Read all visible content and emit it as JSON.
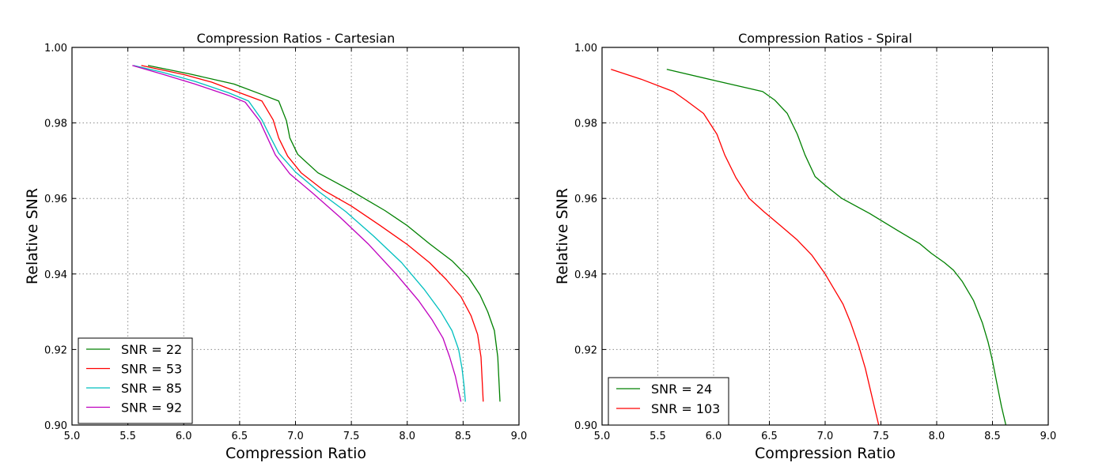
{
  "chart_data": [
    {
      "type": "line",
      "title": "Compression Ratios - Cartesian",
      "xlabel": "Compression Ratio",
      "ylabel": "Relative SNR",
      "xlim": [
        5.0,
        9.0
      ],
      "ylim": [
        0.9,
        1.0
      ],
      "xticks": [
        "5.0",
        "5.5",
        "6.0",
        "6.5",
        "7.0",
        "7.5",
        "8.0",
        "8.5",
        "9.0"
      ],
      "yticks": [
        "0.90",
        "0.92",
        "0.94",
        "0.96",
        "0.98",
        "1.00"
      ],
      "grid": true,
      "legend_position": "lower-left",
      "series": [
        {
          "name": "SNR = 22",
          "color": "#008000",
          "x": [
            5.68,
            6.05,
            6.45,
            6.7,
            6.85,
            6.92,
            6.95,
            7.02,
            7.2,
            7.5,
            7.8,
            8.0,
            8.2,
            8.4,
            8.55,
            8.65,
            8.72,
            8.78,
            8.81,
            8.83
          ],
          "y": [
            0.9952,
            0.993,
            0.9903,
            0.9875,
            0.9858,
            0.9805,
            0.976,
            0.9717,
            0.9668,
            0.962,
            0.9568,
            0.9528,
            0.948,
            0.9435,
            0.939,
            0.9345,
            0.93,
            0.925,
            0.918,
            0.9062
          ]
        },
        {
          "name": "SNR = 53",
          "color": "#ff0000",
          "x": [
            5.62,
            6.0,
            6.25,
            6.5,
            6.7,
            6.8,
            6.85,
            6.93,
            7.05,
            7.25,
            7.5,
            7.75,
            8.0,
            8.2,
            8.35,
            8.48,
            8.57,
            8.63,
            8.66,
            8.68
          ],
          "y": [
            0.9952,
            0.9928,
            0.9908,
            0.988,
            0.9858,
            0.9808,
            0.976,
            0.9712,
            0.9668,
            0.9622,
            0.958,
            0.953,
            0.9478,
            0.943,
            0.9385,
            0.934,
            0.929,
            0.924,
            0.918,
            0.9062
          ]
        },
        {
          "name": "SNR = 85",
          "color": "#00bfbf",
          "x": [
            5.55,
            5.8,
            6.1,
            6.4,
            6.58,
            6.7,
            6.78,
            6.85,
            7.0,
            7.2,
            7.45,
            7.7,
            7.95,
            8.15,
            8.3,
            8.4,
            8.46,
            8.49,
            8.51,
            8.52
          ],
          "y": [
            0.9952,
            0.9935,
            0.991,
            0.988,
            0.9858,
            0.9808,
            0.976,
            0.972,
            0.967,
            0.962,
            0.9565,
            0.95,
            0.943,
            0.936,
            0.93,
            0.925,
            0.92,
            0.915,
            0.91,
            0.9062
          ]
        },
        {
          "name": "SNR = 92",
          "color": "#bf00bf",
          "x": [
            5.54,
            5.8,
            6.1,
            6.4,
            6.55,
            6.68,
            6.75,
            6.82,
            6.95,
            7.15,
            7.4,
            7.65,
            7.9,
            8.1,
            8.22,
            8.32,
            8.38,
            8.43,
            8.46,
            8.48
          ],
          "y": [
            0.9952,
            0.993,
            0.9903,
            0.9873,
            0.9855,
            0.9805,
            0.976,
            0.9715,
            0.9665,
            0.9615,
            0.955,
            0.948,
            0.94,
            0.933,
            0.928,
            0.923,
            0.918,
            0.913,
            0.909,
            0.9062
          ]
        }
      ],
      "legend": [
        "SNR = 22",
        "SNR = 53",
        "SNR = 85",
        "SNR = 92"
      ]
    },
    {
      "type": "line",
      "title": "Compression Ratios - Spiral",
      "xlabel": "Compression Ratio",
      "ylabel": "Relative SNR",
      "xlim": [
        5.0,
        9.0
      ],
      "ylim": [
        0.9,
        1.0
      ],
      "xticks": [
        "5.0",
        "5.5",
        "6.0",
        "6.5",
        "7.0",
        "7.5",
        "8.0",
        "8.5",
        "9.0"
      ],
      "yticks": [
        "0.90",
        "0.92",
        "0.94",
        "0.96",
        "0.98",
        "1.00"
      ],
      "grid": true,
      "legend_position": "lower-left",
      "series": [
        {
          "name": "SNR = 24",
          "color": "#008000",
          "x": [
            5.58,
            6.0,
            6.44,
            6.55,
            6.66,
            6.75,
            6.82,
            6.91,
            7.0,
            7.15,
            7.4,
            7.65,
            7.85,
            7.95,
            8.07,
            8.15,
            8.23,
            8.33,
            8.41,
            8.46,
            8.5,
            8.54,
            8.58,
            8.62
          ],
          "y": [
            0.9942,
            0.9913,
            0.9883,
            0.986,
            0.9825,
            0.977,
            0.9715,
            0.9658,
            0.9635,
            0.96,
            0.956,
            0.9515,
            0.948,
            0.9455,
            0.943,
            0.941,
            0.938,
            0.933,
            0.927,
            0.922,
            0.917,
            0.911,
            0.905,
            0.9
          ]
        },
        {
          "name": "SNR = 103",
          "color": "#ff0000",
          "x": [
            5.08,
            5.35,
            5.64,
            5.75,
            5.91,
            6.03,
            6.1,
            6.2,
            6.32,
            6.45,
            6.6,
            6.75,
            6.88,
            7.0,
            7.08,
            7.16,
            7.23,
            7.3,
            7.36,
            7.4,
            7.44,
            7.48
          ],
          "y": [
            0.9942,
            0.9916,
            0.9883,
            0.986,
            0.9825,
            0.977,
            0.9715,
            0.9655,
            0.96,
            0.9565,
            0.9528,
            0.949,
            0.945,
            0.94,
            0.936,
            0.932,
            0.927,
            0.921,
            0.915,
            0.91,
            0.905,
            0.9
          ]
        }
      ],
      "legend": [
        "SNR = 24",
        "SNR = 103"
      ]
    }
  ]
}
